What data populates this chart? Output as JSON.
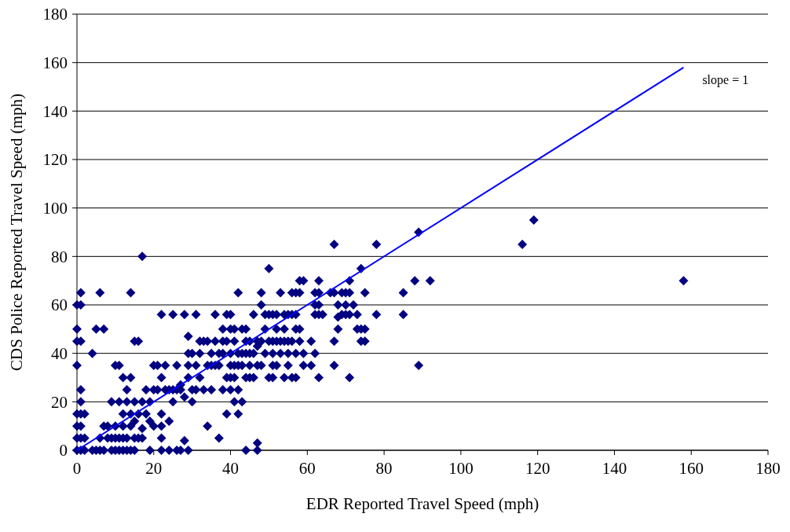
{
  "chart_data": {
    "type": "scatter",
    "xlabel": "EDR Reported Travel Speed (mph)",
    "ylabel": "CDS Police Reported Travel Speed (mph)",
    "xlim": [
      0,
      180
    ],
    "ylim": [
      0,
      180
    ],
    "xticks": [
      0,
      20,
      40,
      60,
      80,
      100,
      120,
      140,
      160,
      180
    ],
    "yticks": [
      0,
      20,
      40,
      60,
      80,
      100,
      120,
      140,
      160,
      180
    ],
    "grid": "y",
    "annotations": [
      "slope = 1"
    ],
    "series": [
      {
        "marker": "diamond",
        "color": "#000080",
        "x": [
          0,
          0,
          0,
          0,
          0,
          0,
          0,
          0,
          1,
          1,
          1,
          1,
          1,
          1,
          1,
          1,
          1,
          2,
          2,
          2,
          4,
          4,
          5,
          5,
          6,
          6,
          6,
          7,
          7,
          7,
          8,
          8,
          9,
          9,
          9,
          10,
          10,
          10,
          10,
          11,
          11,
          11,
          11,
          12,
          12,
          12,
          12,
          12,
          13,
          13,
          13,
          13,
          14,
          14,
          14,
          14,
          14,
          15,
          15,
          15,
          15,
          15,
          16,
          16,
          16,
          17,
          17,
          17,
          17,
          18,
          18,
          19,
          19,
          19,
          20,
          20,
          20,
          21,
          21,
          22,
          22,
          22,
          22,
          22,
          22,
          23,
          23,
          24,
          24,
          24,
          25,
          25,
          25,
          26,
          26,
          26,
          27,
          27,
          27,
          28,
          28,
          28,
          29,
          29,
          29,
          29,
          29,
          30,
          30,
          30,
          31,
          31,
          31,
          32,
          32,
          32,
          33,
          33,
          34,
          34,
          34,
          35,
          35,
          35,
          36,
          36,
          36,
          37,
          37,
          37,
          38,
          38,
          38,
          38,
          39,
          39,
          39,
          39,
          40,
          40,
          40,
          40,
          40,
          40,
          41,
          41,
          41,
          41,
          41,
          42,
          42,
          42,
          42,
          42,
          43,
          43,
          43,
          43,
          44,
          44,
          44,
          44,
          44,
          45,
          45,
          45,
          45,
          46,
          46,
          46,
          47,
          47,
          47,
          47,
          47,
          48,
          48,
          48,
          48,
          49,
          49,
          49,
          50,
          50,
          50,
          50,
          51,
          51,
          51,
          51,
          51,
          52,
          52,
          52,
          52,
          53,
          53,
          53,
          54,
          54,
          54,
          54,
          55,
          55,
          55,
          55,
          56,
          56,
          56,
          56,
          57,
          57,
          57,
          57,
          57,
          58,
          58,
          58,
          58,
          59,
          59,
          59,
          61,
          61,
          62,
          62,
          62,
          62,
          63,
          63,
          63,
          63,
          63,
          64,
          66,
          67,
          67,
          67,
          67,
          68,
          68,
          68,
          69,
          69,
          70,
          70,
          70,
          71,
          71,
          71,
          71,
          72,
          73,
          73,
          74,
          74,
          74,
          75,
          75,
          75,
          78,
          78,
          85,
          85,
          88,
          89,
          89,
          92,
          116,
          119,
          158
        ],
        "values": [
          0,
          5,
          10,
          15,
          35,
          45,
          50,
          60,
          0,
          5,
          10,
          15,
          20,
          25,
          45,
          60,
          65,
          0,
          5,
          15,
          0,
          40,
          0,
          50,
          0,
          5,
          65,
          10,
          0,
          50,
          5,
          10,
          0,
          5,
          20,
          5,
          10,
          35,
          0,
          0,
          5,
          20,
          35,
          0,
          5,
          10,
          15,
          30,
          0,
          5,
          20,
          25,
          0,
          10,
          15,
          30,
          65,
          5,
          12,
          20,
          45,
          0,
          5,
          15,
          45,
          5,
          20,
          80,
          9,
          15,
          25,
          0,
          12,
          20,
          25,
          35,
          10,
          25,
          35,
          0,
          5,
          15,
          56,
          10,
          30,
          25,
          35,
          0,
          12,
          25,
          20,
          25,
          56,
          0,
          25,
          35,
          0,
          25,
          27,
          4,
          22,
          56,
          0,
          30,
          35,
          40,
          47,
          20,
          25,
          40,
          25,
          35,
          56,
          30,
          40,
          45,
          25,
          45,
          10,
          35,
          45,
          25,
          35,
          40,
          35,
          45,
          56,
          5,
          35,
          40,
          25,
          40,
          45,
          50,
          15,
          30,
          45,
          56,
          25,
          30,
          35,
          40,
          50,
          56,
          20,
          30,
          35,
          45,
          50,
          15,
          25,
          35,
          40,
          65,
          20,
          35,
          40,
          50,
          0,
          30,
          40,
          45,
          50,
          30,
          35,
          40,
          45,
          30,
          40,
          56,
          0,
          3,
          35,
          43,
          45,
          35,
          45,
          60,
          65,
          40,
          50,
          56,
          30,
          45,
          56,
          75,
          30,
          35,
          40,
          45,
          56,
          35,
          45,
          50,
          56,
          40,
          45,
          65,
          30,
          45,
          50,
          56,
          35,
          40,
          45,
          56,
          30,
          45,
          56,
          65,
          30,
          40,
          50,
          56,
          65,
          45,
          50,
          65,
          70,
          35,
          40,
          70,
          35,
          45,
          40,
          56,
          60,
          65,
          30,
          56,
          60,
          65,
          70,
          56,
          65,
          35,
          45,
          65,
          85,
          50,
          55,
          60,
          56,
          65,
          56,
          60,
          65,
          30,
          56,
          65,
          70,
          60,
          50,
          56,
          45,
          50,
          75,
          45,
          50,
          65,
          56,
          85,
          56,
          65,
          70,
          35,
          90,
          70,
          85,
          95,
          70
        ]
      },
      {
        "type": "line",
        "color": "#0000ff",
        "x": [
          0,
          158
        ],
        "values": [
          0,
          158
        ]
      }
    ]
  }
}
